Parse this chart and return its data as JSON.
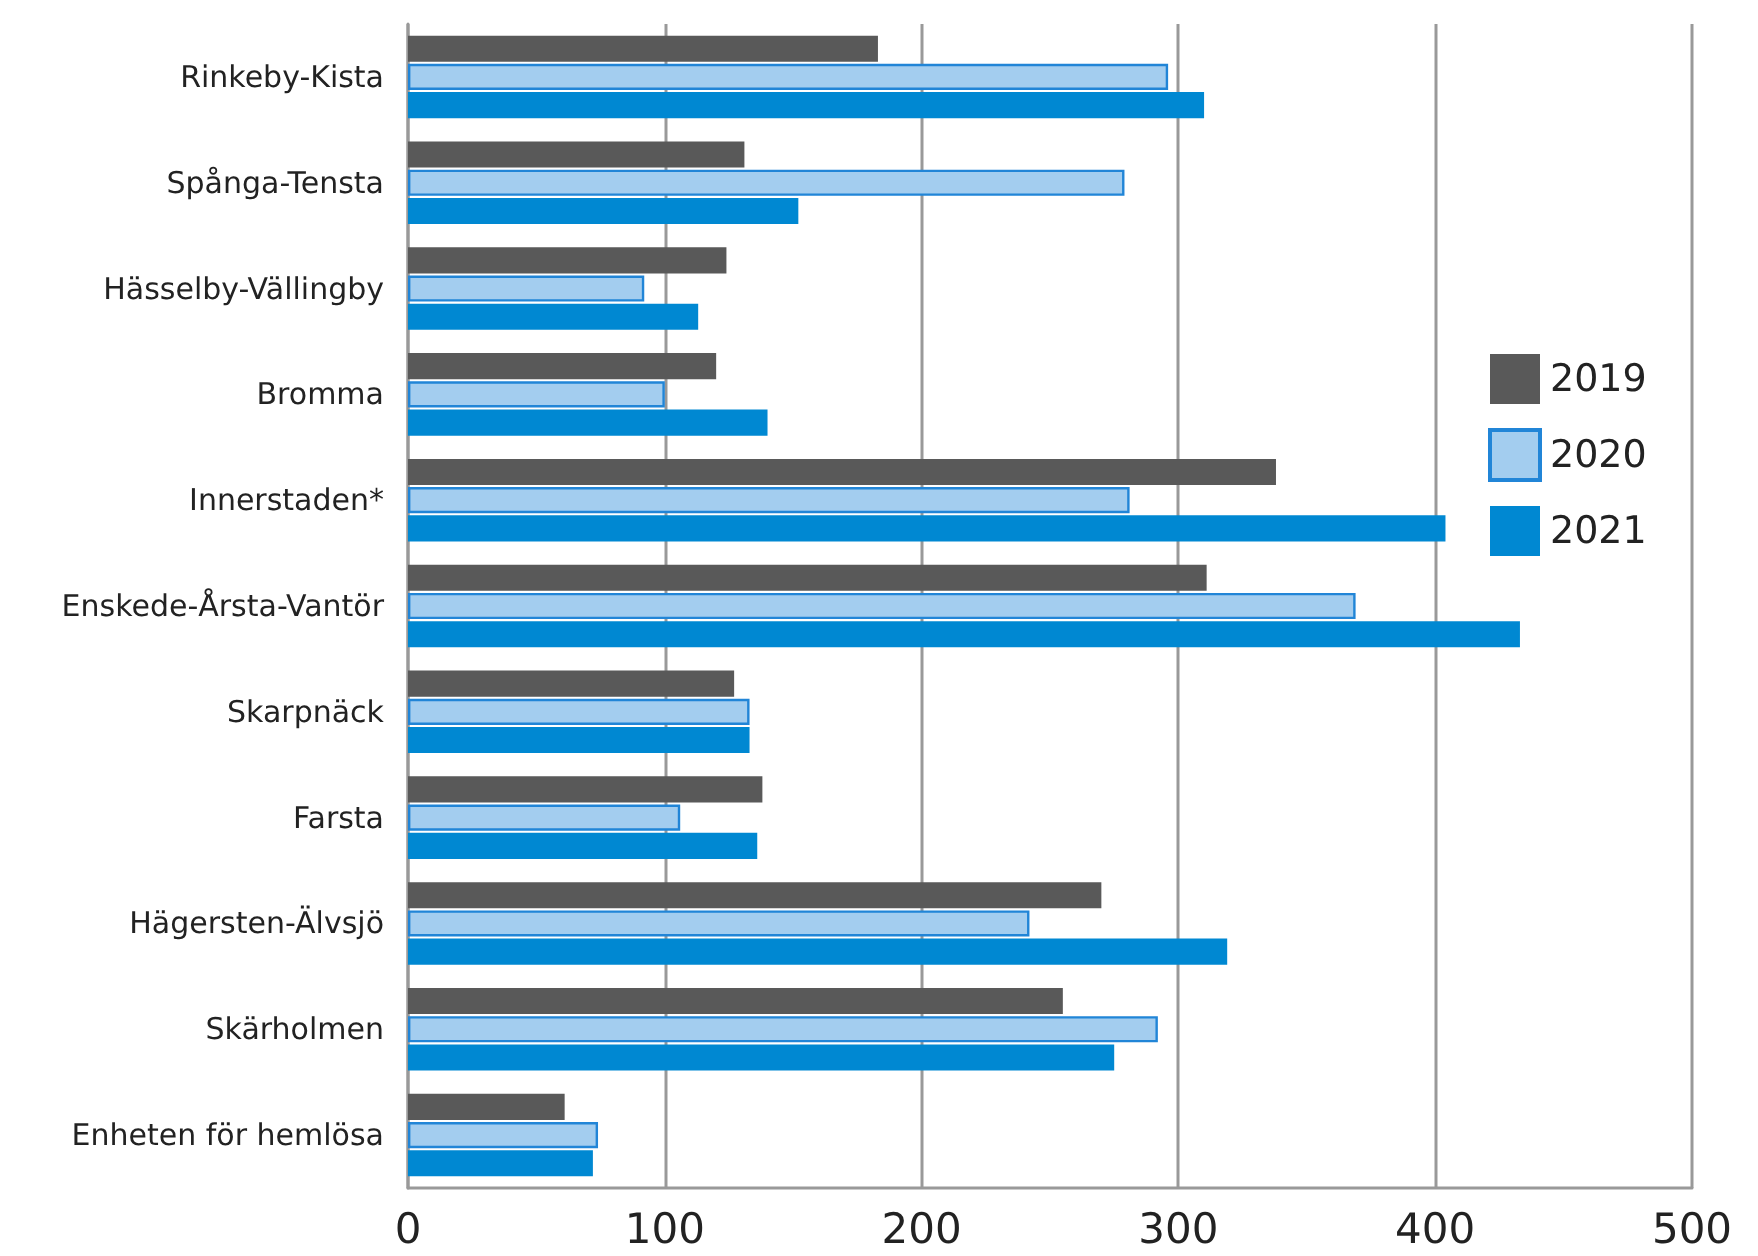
{
  "chart_data": {
    "type": "bar",
    "orientation": "horizontal",
    "categories": [
      "Rinkeby-Kista",
      "Spånga-Tensta",
      "Hässelby-Vällingby",
      "Bromma",
      "Innerstaden*",
      "Enskede-Årsta-Vantör",
      "Skarpnäck",
      "Farsta",
      "Hägersten-Älvsjö",
      "Skärholmen",
      "Enheten för hemlösa"
    ],
    "series": [
      {
        "name": "2019",
        "color": "#595959",
        "values": [
          183,
          131,
          124,
          120,
          338,
          311,
          127,
          138,
          270,
          255,
          61
        ]
      },
      {
        "name": "2020",
        "color": "#a3cdef",
        "values": [
          296,
          279,
          92,
          100,
          281,
          369,
          133,
          106,
          242,
          292,
          74
        ]
      },
      {
        "name": "2021",
        "color": "#0088d2",
        "values": [
          310,
          152,
          113,
          140,
          404,
          433,
          133,
          136,
          319,
          275,
          72
        ]
      }
    ],
    "xlim": [
      0,
      500
    ],
    "xticks": [
      0,
      100,
      200,
      300,
      400,
      500
    ],
    "grid": "x",
    "legend": "right"
  }
}
